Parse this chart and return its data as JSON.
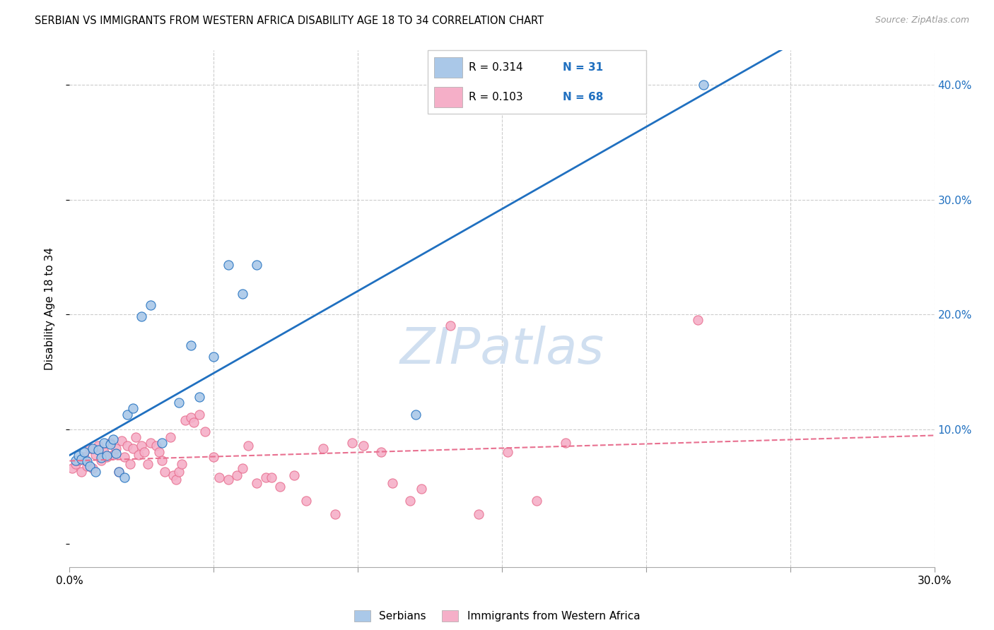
{
  "title": "SERBIAN VS IMMIGRANTS FROM WESTERN AFRICA DISABILITY AGE 18 TO 34 CORRELATION CHART",
  "source": "Source: ZipAtlas.com",
  "ylabel": "Disability Age 18 to 34",
  "xlim": [
    0.0,
    0.3
  ],
  "ylim": [
    -0.02,
    0.43
  ],
  "xticks": [
    0.0,
    0.05,
    0.1,
    0.15,
    0.2,
    0.25,
    0.3
  ],
  "xtick_labels": [
    "0.0%",
    "",
    "",
    "",
    "",
    "",
    "30.0%"
  ],
  "yticks": [
    0.0,
    0.1,
    0.2,
    0.3,
    0.4
  ],
  "ytick_labels": [
    "",
    "10.0%",
    "20.0%",
    "30.0%",
    "40.0%"
  ],
  "serbian_R": "0.314",
  "serbian_N": "31",
  "western_africa_R": "0.103",
  "western_africa_N": "68",
  "serbian_color": "#aac8e8",
  "western_africa_color": "#f5afc8",
  "serbian_line_color": "#2070c0",
  "western_africa_line_color": "#e87090",
  "grid_color": "#cccccc",
  "text_color": "#2070c0",
  "watermark_color": "#d0dff0",
  "serbian_x": [
    0.002,
    0.003,
    0.004,
    0.005,
    0.006,
    0.007,
    0.008,
    0.009,
    0.01,
    0.011,
    0.012,
    0.013,
    0.014,
    0.015,
    0.016,
    0.017,
    0.019,
    0.02,
    0.022,
    0.025,
    0.028,
    0.032,
    0.038,
    0.042,
    0.045,
    0.05,
    0.055,
    0.06,
    0.065,
    0.12,
    0.22
  ],
  "serbian_y": [
    0.073,
    0.077,
    0.074,
    0.08,
    0.072,
    0.068,
    0.083,
    0.063,
    0.082,
    0.075,
    0.088,
    0.077,
    0.087,
    0.091,
    0.079,
    0.063,
    0.058,
    0.113,
    0.118,
    0.198,
    0.208,
    0.088,
    0.123,
    0.173,
    0.128,
    0.163,
    0.243,
    0.218,
    0.243,
    0.113,
    0.4
  ],
  "western_africa_x": [
    0.001,
    0.002,
    0.003,
    0.004,
    0.005,
    0.006,
    0.007,
    0.008,
    0.009,
    0.01,
    0.011,
    0.012,
    0.013,
    0.014,
    0.015,
    0.016,
    0.017,
    0.018,
    0.019,
    0.02,
    0.021,
    0.022,
    0.023,
    0.024,
    0.025,
    0.026,
    0.027,
    0.028,
    0.03,
    0.031,
    0.032,
    0.033,
    0.035,
    0.036,
    0.037,
    0.038,
    0.039,
    0.04,
    0.042,
    0.043,
    0.045,
    0.047,
    0.05,
    0.052,
    0.055,
    0.058,
    0.06,
    0.062,
    0.065,
    0.068,
    0.07,
    0.073,
    0.078,
    0.082,
    0.088,
    0.092,
    0.098,
    0.102,
    0.108,
    0.112,
    0.118,
    0.122,
    0.132,
    0.142,
    0.152,
    0.162,
    0.172,
    0.218
  ],
  "western_africa_y": [
    0.066,
    0.07,
    0.073,
    0.063,
    0.076,
    0.068,
    0.083,
    0.066,
    0.078,
    0.086,
    0.073,
    0.08,
    0.076,
    0.088,
    0.078,
    0.083,
    0.063,
    0.09,
    0.076,
    0.086,
    0.07,
    0.083,
    0.093,
    0.078,
    0.086,
    0.08,
    0.07,
    0.088,
    0.086,
    0.08,
    0.073,
    0.063,
    0.093,
    0.06,
    0.056,
    0.063,
    0.07,
    0.108,
    0.11,
    0.106,
    0.113,
    0.098,
    0.076,
    0.058,
    0.056,
    0.06,
    0.066,
    0.086,
    0.053,
    0.058,
    0.058,
    0.05,
    0.06,
    0.038,
    0.083,
    0.026,
    0.088,
    0.086,
    0.08,
    0.053,
    0.038,
    0.048,
    0.19,
    0.026,
    0.08,
    0.038,
    0.088,
    0.195
  ]
}
